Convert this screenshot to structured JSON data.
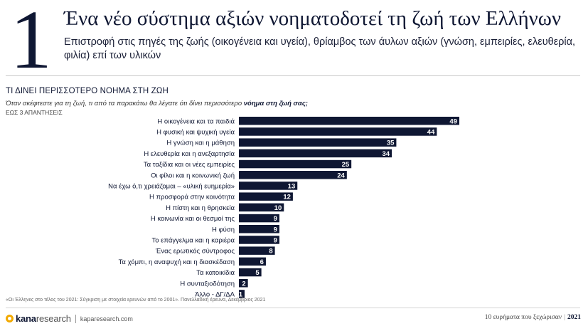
{
  "header": {
    "number": "1",
    "title": "Ένα νέο σύστημα αξιών νοηματοδοτεί τη ζωή των Ελλήνων",
    "subtitle": "Επιστροφή στις πηγές της ζωής (οικογένεια και υγεία), θρίαμβος των άυλων αξιών (γνώση, εμπειρίες, ελευθερία, φιλία) επί των υλικών"
  },
  "question": {
    "title": "ΤΙ ΔΙΝΕΙ ΠΕΡΙΣΣΟΤΕΡΟ ΝΟΗΜΑ ΣΤΗ ΖΩΗ",
    "text_lead": "Όταν σκέφτεστε για τη ζωή, τι από τα παρακάτω θα λέγατε ότι δίνει περισσότερο ",
    "text_bold": "νόημα στη ζωή σας;",
    "note": "ΕΩΣ 3 ΑΠΑΝΤΗΣΕΙΣ"
  },
  "chart_data": {
    "type": "bar",
    "orientation": "horizontal",
    "title": "ΤΙ ΔΙΝΕΙ ΠΕΡΙΣΣΟΤΕΡΟ ΝΟΗΜΑ ΣΤΗ ΖΩΗ",
    "categories": [
      "Η οικογένεια και τα παιδιά",
      "Η φυσική και ψυχική υγεία",
      "Η γνώση και η μάθηση",
      "Η ελευθερία και η ανεξαρτησία",
      "Τα ταξίδια και οι νέες εμπειρίες",
      "Οι φίλοι και η κοινωνική ζωή",
      "Να έχω ό,τι χρειάζομαι – «υλική ευημερία»",
      "Η προσφορά στην κοινότητα",
      "Η πίστη και η θρησκεία",
      "Η κοινωνία και οι θεσμοί της",
      "Η φύση",
      "Το επάγγελμα και η καριέρα",
      "Ένας ερωτικός σύντροφος",
      "Τα χόμπι, η αναψυχή και η διασκέδαση",
      "Τα κατοικίδια",
      "Η συνταξιοδότηση",
      "Άλλο - ΔΓ/ΔΑ"
    ],
    "values": [
      49,
      44,
      35,
      34,
      25,
      24,
      13,
      12,
      10,
      9,
      9,
      9,
      8,
      6,
      5,
      2,
      1
    ],
    "xlabel": "",
    "ylabel": "",
    "xlim": [
      0,
      49
    ],
    "bar_color": "#0f1733",
    "label_color": "#ffffff"
  },
  "footer": {
    "source": "«Οι Έλληνες στο τέλος του 2021: Σύγκριση με στοιχεία ερευνών από το 2001». Πανελλαδική έρευνα, Δεκέμβριος 2021",
    "logo_bold": "kana",
    "logo_light": "research",
    "url": "kaparesearch.com",
    "tagline": "10 ευρήματα που ξεχώρισαν",
    "year": "2021"
  }
}
